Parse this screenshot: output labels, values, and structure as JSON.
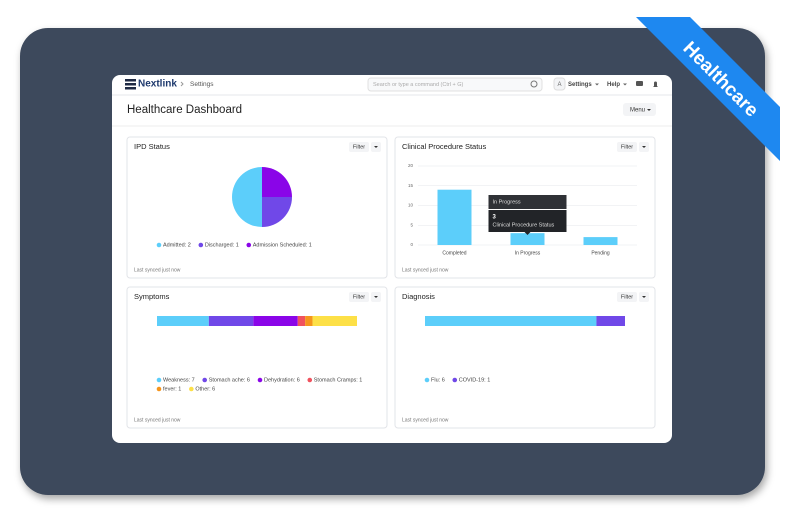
{
  "ribbon": "Healthcare",
  "nav": {
    "brand": "Nextlink",
    "breadcrumb": "Settings",
    "search_placeholder": "Search or type a command (Ctrl + G)",
    "avatar": "A",
    "menus": [
      "Settings",
      "Help"
    ]
  },
  "header": {
    "title": "Healthcare Dashboard",
    "menu": "Menu"
  },
  "panels": [
    {
      "title": "IPD Status",
      "filter": "Filter",
      "footer": "Last synced just now",
      "chart": {
        "type": "pie",
        "labels": [
          "Admitted: 2",
          "Discharged: 1",
          "Admission Scheduled: 1"
        ],
        "values": [
          2,
          1,
          1
        ],
        "colors": [
          "#5ccefa",
          "#7048e8",
          "#8a05e8"
        ]
      }
    },
    {
      "title": "Clinical Procedure Status",
      "filter": "Filter",
      "footer": "Last synced just now",
      "chart": {
        "type": "bar",
        "categories": [
          "Completed",
          "In Progress",
          "Pending"
        ],
        "values": [
          14,
          3,
          2
        ],
        "color": "#5ccefa",
        "ylim": [
          0,
          20
        ],
        "yticks": [
          0,
          5,
          10,
          15,
          20
        ],
        "grid": true,
        "tooltip": {
          "title": "In Progress",
          "value": 3,
          "series": "Clinical Procedure Status"
        }
      }
    },
    {
      "title": "Symptoms",
      "filter": "Filter",
      "footer": "Last synced just now",
      "chart": {
        "type": "stacked-hbar",
        "labels": [
          "Weakness: 7",
          "Stomach ache: 6",
          "Dehydration: 6",
          "Stomach Cramps: 1",
          "fever: 1",
          "Other: 6"
        ],
        "values": [
          7,
          6,
          6,
          1,
          1,
          6
        ],
        "colors": [
          "#5ccefa",
          "#7048e8",
          "#8a05e8",
          "#f0525e",
          "#f5951d",
          "#fde047"
        ]
      }
    },
    {
      "title": "Diagnosis",
      "filter": "Filter",
      "footer": "Last synced just now",
      "chart": {
        "type": "stacked-hbar",
        "labels": [
          "Flu: 6",
          "COVID-19: 1"
        ],
        "values": [
          6,
          1
        ],
        "colors": [
          "#5ccefa",
          "#7048e8"
        ]
      }
    }
  ]
}
